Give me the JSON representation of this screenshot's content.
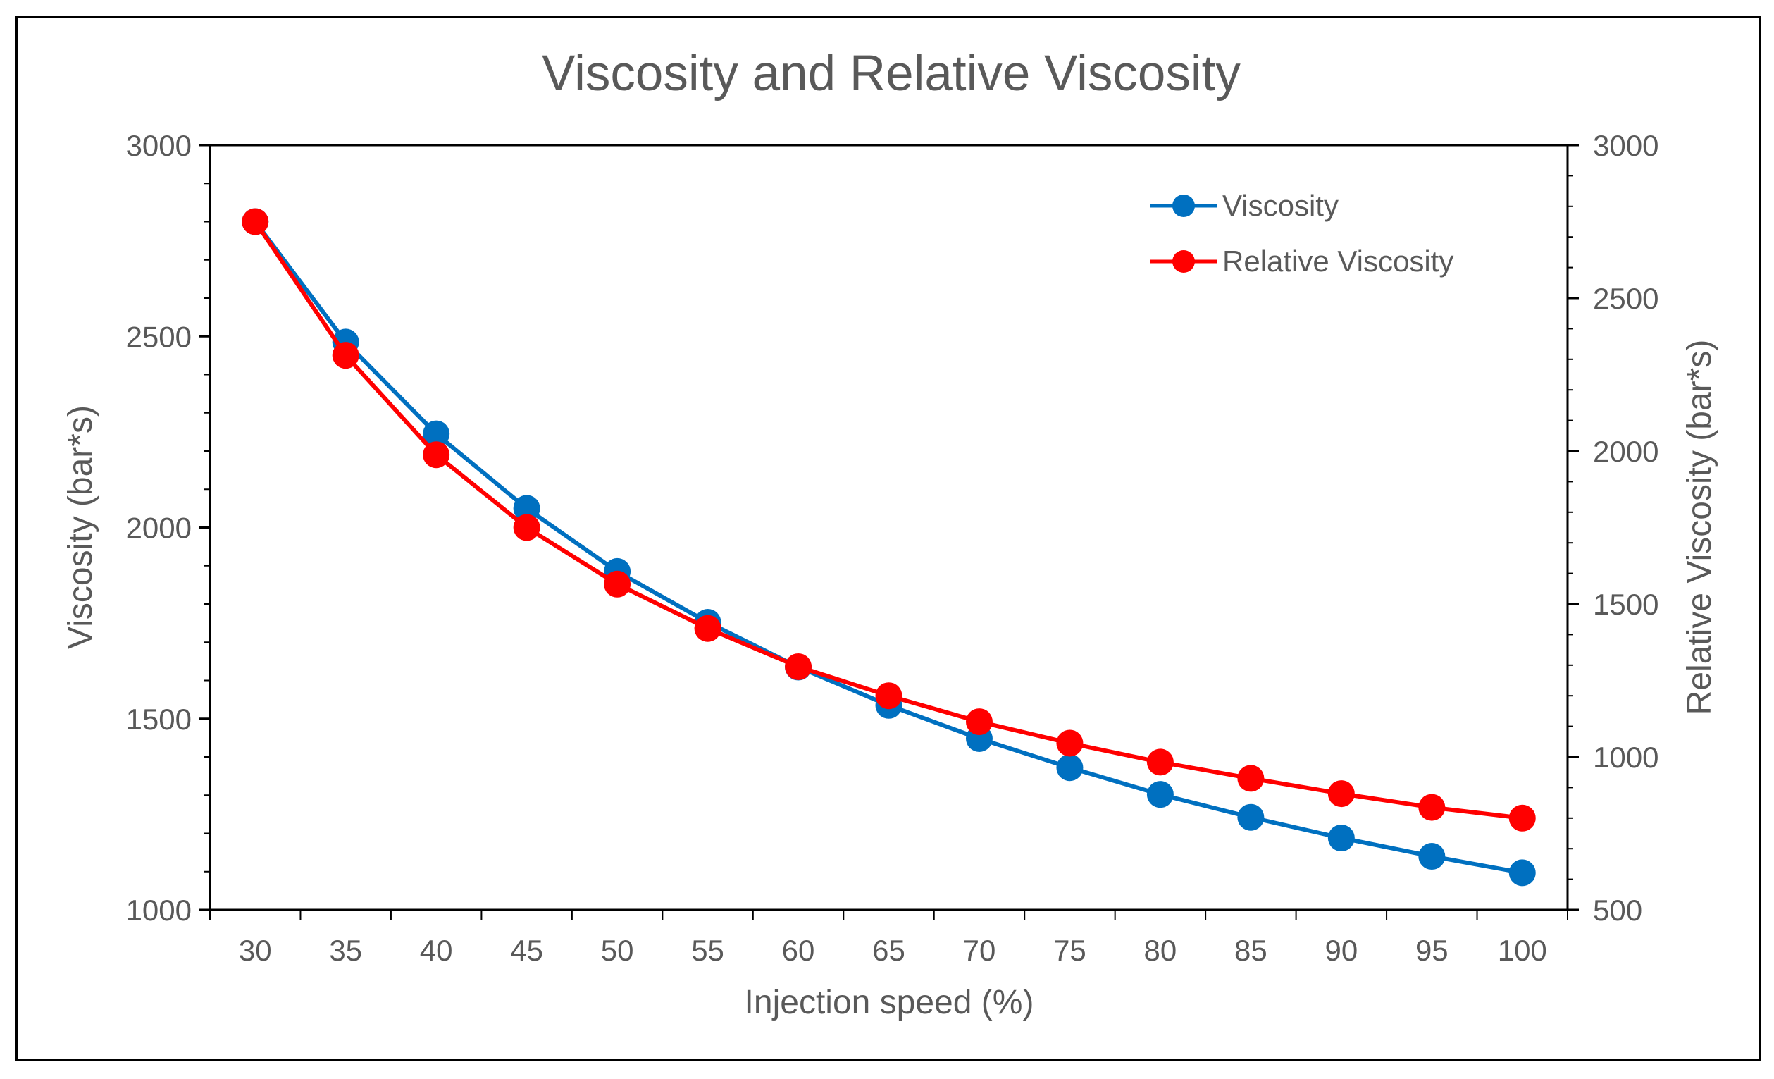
{
  "chart_data": {
    "type": "line",
    "title": "Viscosity and Relative Viscosity",
    "xlabel": "Injection speed (%)",
    "ylabel": "Viscosity (bar*s)",
    "ylabel_right": "Relative Viscosity (bar*s)",
    "x": [
      30,
      35,
      40,
      45,
      50,
      55,
      60,
      65,
      70,
      75,
      80,
      85,
      90,
      95,
      100
    ],
    "ylim": [
      1000,
      3000
    ],
    "ylim_right": [
      500,
      3000
    ],
    "yticks": [
      1000,
      1500,
      2000,
      2500,
      3000
    ],
    "yticks_right": [
      500,
      1000,
      1500,
      2000,
      2500,
      3000
    ],
    "grid": false,
    "legend_position": "top-right",
    "series": [
      {
        "name": "Viscosity",
        "axis": "left",
        "color": "#0070C0",
        "values": [
          2800,
          2485,
          2245,
          2050,
          1885,
          1752,
          1635,
          1535,
          1448,
          1372,
          1302,
          1242,
          1188,
          1140,
          1097
        ]
      },
      {
        "name": "Relative Viscosity",
        "axis": "right",
        "color": "#FF0000",
        "values": [
          2750,
          2313,
          1988,
          1750,
          1565,
          1420,
          1295,
          1200,
          1115,
          1045,
          983,
          930,
          880,
          835,
          800
        ]
      }
    ]
  }
}
